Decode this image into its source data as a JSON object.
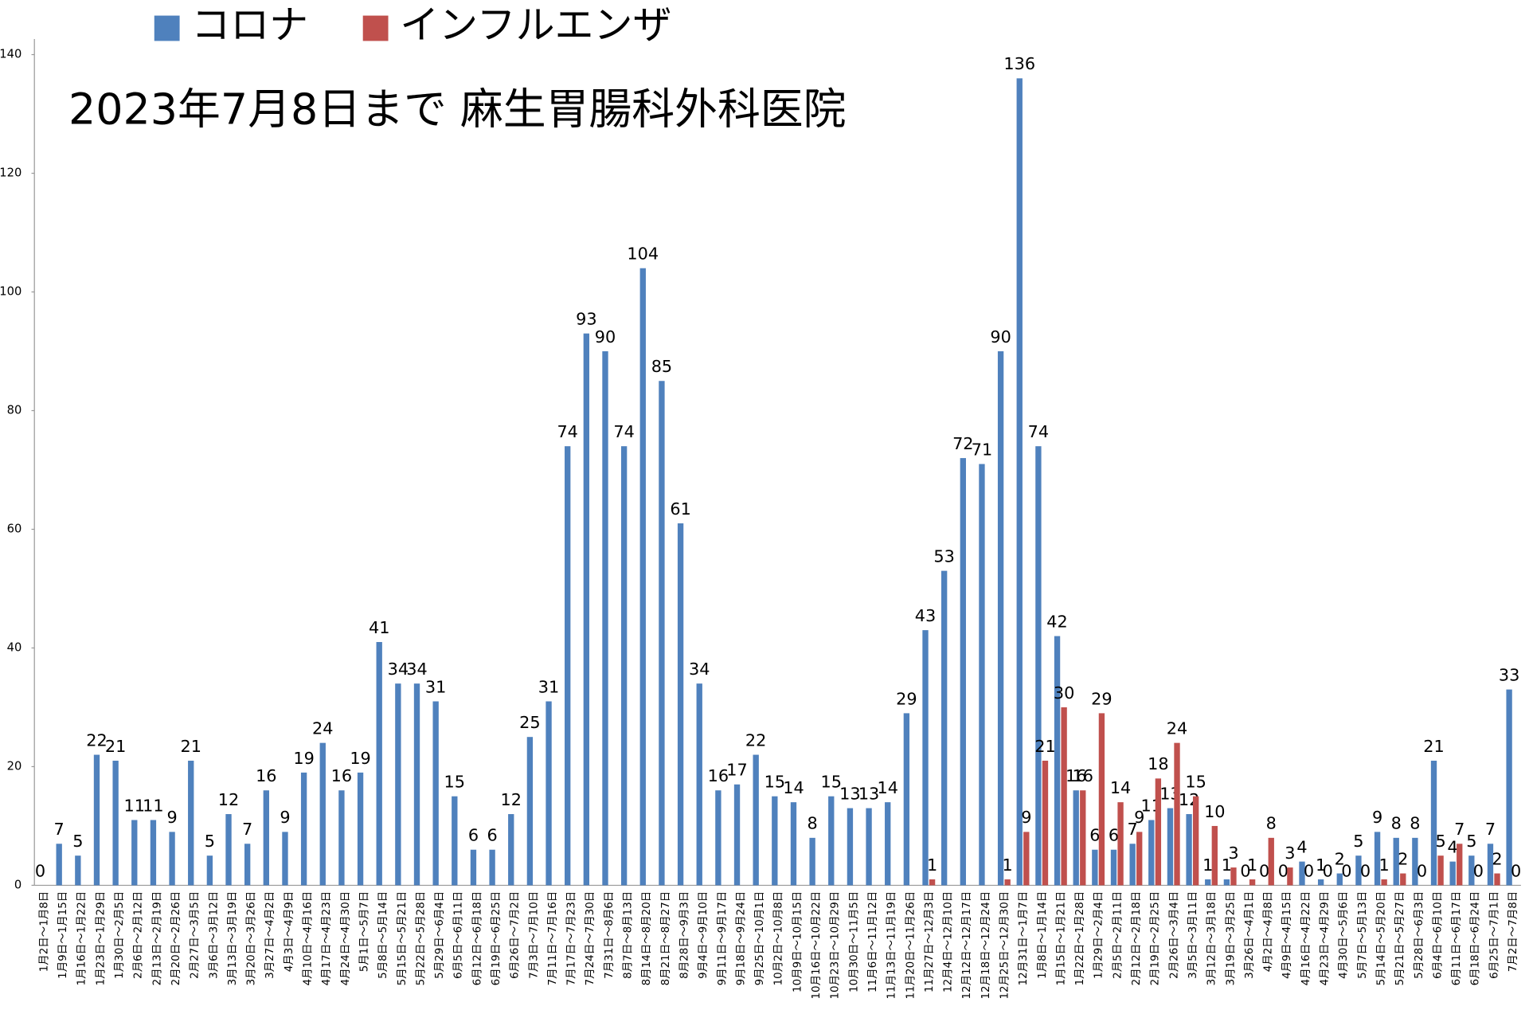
{
  "chart_data": {
    "type": "bar",
    "title": "2023年7月8日まで 麻生胃腸科外科医院",
    "categories": [
      "1月2日～1月8日",
      "1月9日～1月15日",
      "1月16日～1月22日",
      "1月23日～1月29日",
      "1月30日～2月5日",
      "2月6日～2月12日",
      "2月13日～2月19日",
      "2月20日～2月26日",
      "2月27日～3月5日",
      "3月6日～3月12日",
      "3月13日～3月19日",
      "3月20日～3月26日",
      "3月27日～4月2日",
      "4月3日～4月9日",
      "4月10日～4月16日",
      "4月17日～4月23日",
      "4月24日～4月30日",
      "5月1日～5月7日",
      "5月8日～5月14日",
      "5月15日～5月21日",
      "5月22日～5月28日",
      "5月29日～6月4日",
      "6月5日～6月11日",
      "6月12日～6月18日",
      "6月19日～6月25日",
      "6月26日～7月2日",
      "7月3日～7月10日",
      "7月11日～7月16日",
      "7月17日～7月23日",
      "7月24日～7月30日",
      "7月31日～8月6日",
      "8月7日～8月13日",
      "8月14日～8月20日",
      "8月21日～8月27日",
      "8月28日～9月3日",
      "9月4日～9月10日",
      "9月11日～9月17日",
      "9月18日～9月24日",
      "9月25日～10月1日",
      "10月2日～10月8日",
      "10月9日～10月15日",
      "10月16日～10月22日",
      "10月23日～10月29日",
      "10月30日～11月5日",
      "11月6日～11月12日",
      "11月13日～11月19日",
      "11月20日～11月26日",
      "11月27日～12月3日",
      "12月4日～12月10日",
      "12月12日～12月17日",
      "12月18日～12月24日",
      "12月25日～12月30日",
      "12月31日～1月7日",
      "1月8日～1月14日",
      "1月15日～1月21日",
      "1月22日～1月28日",
      "1月29日～2月4日",
      "2月5日～2月11日",
      "2月12日～2月18日",
      "2月19日～2月25日",
      "2月26日～3月4日",
      "3月5日～3月11日",
      "3月12日～3月18日",
      "3月19日～3月25日",
      "3月26日～4月1日",
      "4月2日～4月8日",
      "4月9日～4月15日",
      "4月16日～4月22日",
      "4月23日～4月29日",
      "4月30日～5月6日",
      "5月7日～5月13日",
      "5月14日～5月20日",
      "5月21日～5月27日",
      "5月28日～6月3日",
      "6月4日～6月10日",
      "6月11日～6月17日",
      "6月18日～6月24日",
      "6月25日～7月1日",
      "7月2日～7月8日"
    ],
    "series": [
      {
        "name": "コロナ",
        "color": "#4f81bd",
        "values": [
          0,
          7,
          5,
          22,
          21,
          11,
          11,
          9,
          21,
          5,
          12,
          7,
          16,
          9,
          19,
          24,
          16,
          19,
          41,
          34,
          34,
          31,
          15,
          6,
          6,
          12,
          25,
          31,
          74,
          93,
          90,
          74,
          104,
          85,
          61,
          34,
          16,
          17,
          22,
          15,
          14,
          8,
          15,
          13,
          13,
          14,
          29,
          43,
          53,
          72,
          71,
          90,
          136,
          74,
          42,
          16,
          6,
          6,
          7,
          11,
          13,
          12,
          1,
          1,
          0,
          0,
          0,
          4,
          1,
          2,
          5,
          9,
          8,
          8,
          21,
          4,
          5,
          7,
          33
        ]
      },
      {
        "name": "インフルエンザ",
        "color": "#c0504d",
        "values": [
          null,
          null,
          null,
          null,
          null,
          null,
          null,
          null,
          null,
          null,
          null,
          null,
          null,
          null,
          null,
          null,
          null,
          null,
          null,
          null,
          null,
          null,
          null,
          null,
          null,
          null,
          null,
          null,
          null,
          null,
          null,
          null,
          null,
          null,
          null,
          null,
          null,
          null,
          null,
          null,
          null,
          null,
          null,
          null,
          null,
          null,
          null,
          1,
          null,
          null,
          null,
          1,
          9,
          21,
          30,
          16,
          29,
          14,
          9,
          18,
          24,
          15,
          10,
          3,
          1,
          8,
          3,
          0,
          0,
          0,
          0,
          1,
          2,
          0,
          5,
          7,
          0,
          2,
          0
        ]
      }
    ],
    "ylim": [
      0,
      140
    ],
    "yticks": [
      0,
      20,
      40,
      60,
      80,
      100,
      120,
      140
    ],
    "legend": "top-left"
  }
}
